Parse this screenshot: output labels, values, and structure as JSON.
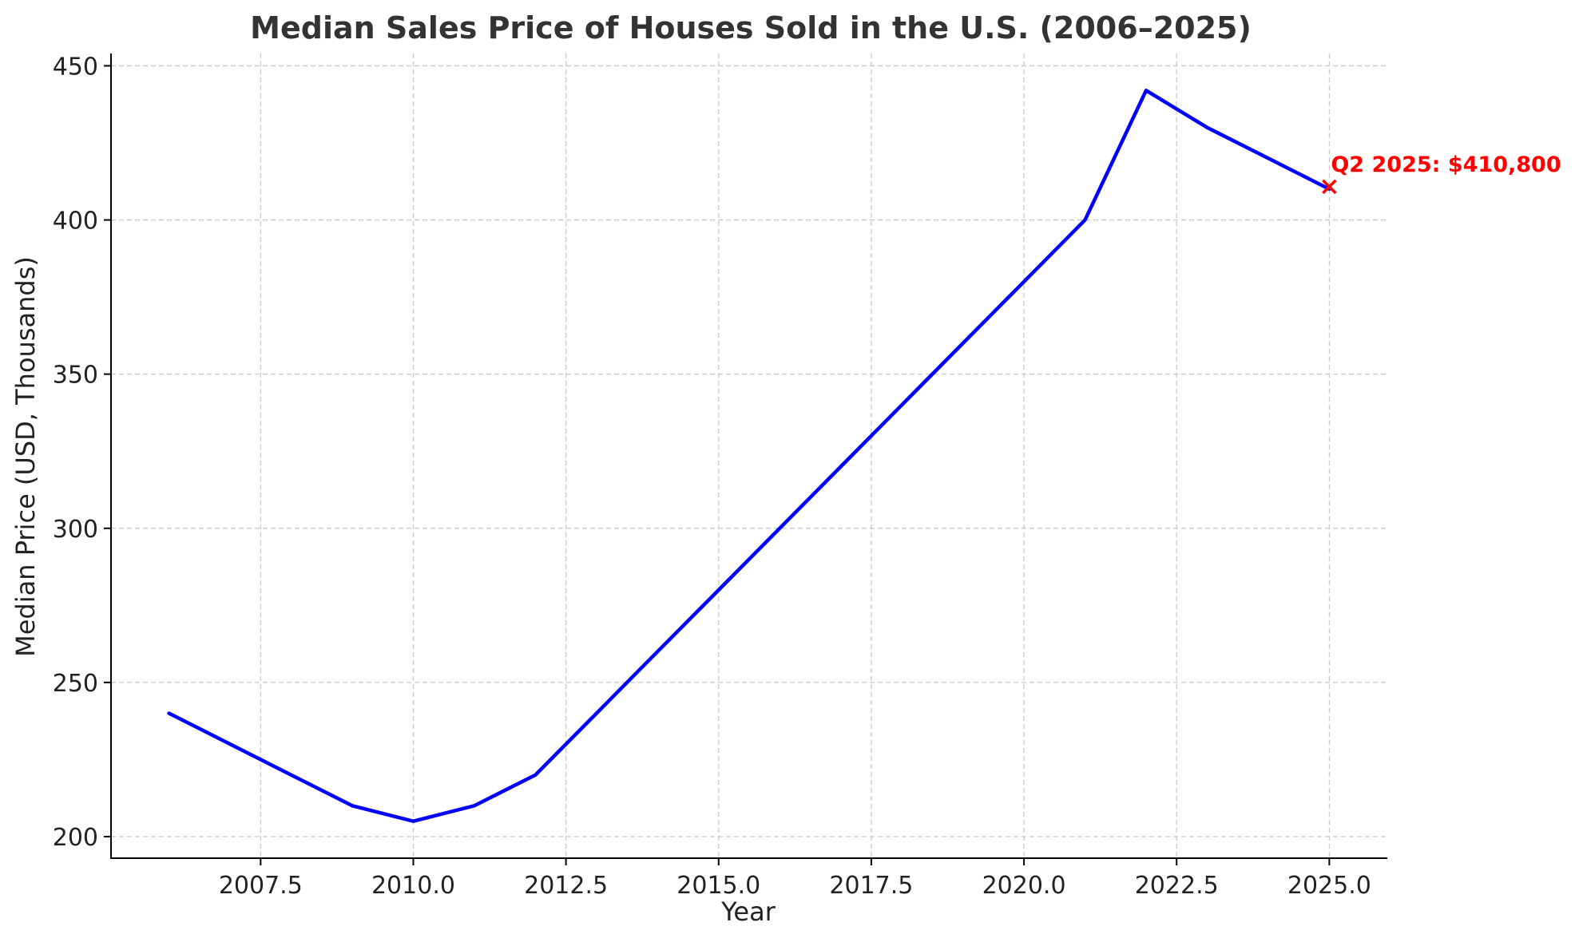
{
  "chart_data": {
    "type": "line",
    "title": "Median Sales Price of Houses Sold in the U.S. (2006–2025)",
    "xlabel": "Year",
    "ylabel": "Median Price (USD, Thousands)",
    "xlim": [
      2005.05,
      2025.95
    ],
    "ylim": [
      193,
      454
    ],
    "xticks": [
      2007.5,
      2010.0,
      2012.5,
      2015.0,
      2017.5,
      2020.0,
      2022.5,
      2025.0
    ],
    "xtick_labels": [
      "2007.5",
      "2010.0",
      "2012.5",
      "2015.0",
      "2017.5",
      "2020.0",
      "2022.5",
      "2025.0"
    ],
    "yticks": [
      200,
      250,
      300,
      350,
      400,
      450
    ],
    "ytick_labels": [
      "200",
      "250",
      "300",
      "350",
      "400",
      "450"
    ],
    "grid": true,
    "series": [
      {
        "color": "#0000ff",
        "x": [
          2006,
          2007,
          2008,
          2009,
          2010,
          2011,
          2012,
          2013,
          2014,
          2015,
          2016,
          2017,
          2018,
          2019,
          2020,
          2021,
          2022,
          2023,
          2024,
          2025
        ],
        "y": [
          240,
          230,
          220,
          210,
          205,
          210,
          220,
          240,
          260,
          280,
          300,
          320,
          340,
          360,
          380,
          400,
          442,
          430,
          420,
          410
        ]
      }
    ],
    "annotation": {
      "x": 2025,
      "y": 410.8,
      "marker": "x",
      "color": "#ff0000",
      "text": "Q2 2025: $410,800"
    }
  }
}
